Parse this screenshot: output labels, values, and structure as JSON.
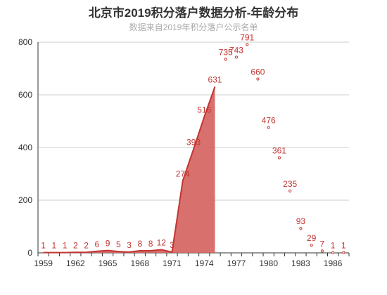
{
  "chart_data": {
    "type": "area",
    "title": "北京市2019积分落户数据分析-年龄分布",
    "subtitle": "数据来自2019年积分落户公示名单",
    "xlabel": "",
    "ylabel": "",
    "ylim": [
      0,
      800
    ],
    "y_ticks": [
      0,
      200,
      400,
      600,
      800
    ],
    "x_tick_labels": [
      "1959",
      "1962",
      "1965",
      "1968",
      "1971",
      "1974",
      "1977",
      "1980",
      "1983",
      "1986"
    ],
    "grid": true,
    "legend": "none",
    "color": "#c23531",
    "area_fill": "#d4605e",
    "x": [
      1959,
      1960,
      1961,
      1962,
      1963,
      1964,
      1965,
      1966,
      1967,
      1968,
      1969,
      1970,
      1971,
      1972,
      1973,
      1974,
      1975,
      1976,
      1977,
      1978,
      1979,
      1980,
      1981,
      1982,
      1983,
      1984,
      1985,
      1986,
      1987
    ],
    "values": [
      1,
      1,
      1,
      2,
      2,
      6,
      9,
      5,
      3,
      8,
      8,
      12,
      3,
      274,
      393,
      516,
      631,
      735,
      743,
      791,
      660,
      476,
      361,
      235,
      93,
      29,
      7,
      1,
      1
    ],
    "filled_through": 1975
  }
}
